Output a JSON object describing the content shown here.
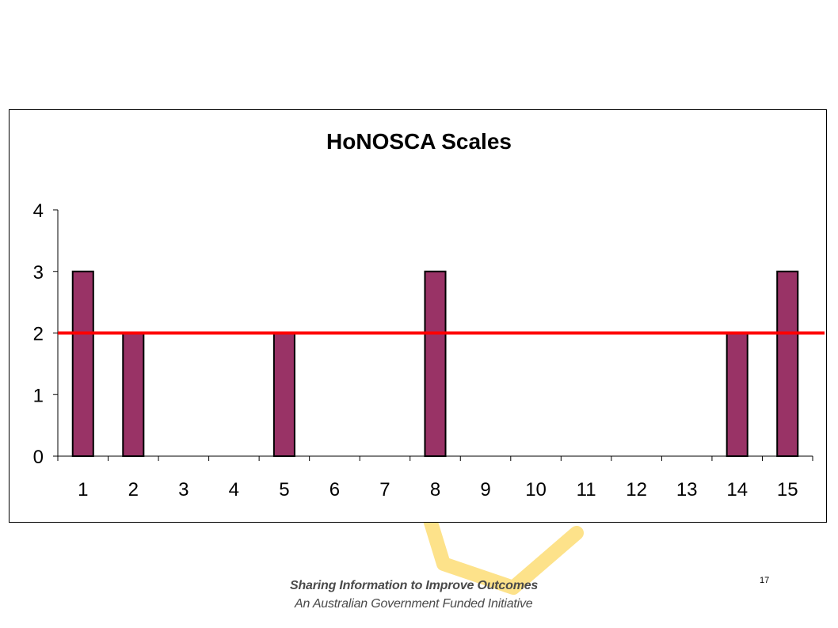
{
  "chart_data": {
    "type": "bar",
    "title": "HoNOSCA Scales",
    "categories": [
      "1",
      "2",
      "3",
      "4",
      "5",
      "6",
      "7",
      "8",
      "9",
      "10",
      "11",
      "12",
      "13",
      "14",
      "15"
    ],
    "values": [
      3,
      2,
      0,
      0,
      2,
      0,
      0,
      3,
      0,
      0,
      0,
      0,
      0,
      2,
      3
    ],
    "reference_line": 2,
    "ylim": [
      0,
      4
    ],
    "yticks": [
      0,
      1,
      2,
      3,
      4
    ],
    "xlabel": "",
    "ylabel": "",
    "grid": false,
    "bar_color": "#993366",
    "reference_line_color": "#ff0000"
  },
  "footer": {
    "tagline": "Sharing Information to Improve Outcomes",
    "subtitle": "An Australian Government Funded Initiative",
    "page_number": "17"
  },
  "colors": {
    "logo_accent": "#fde28a"
  }
}
